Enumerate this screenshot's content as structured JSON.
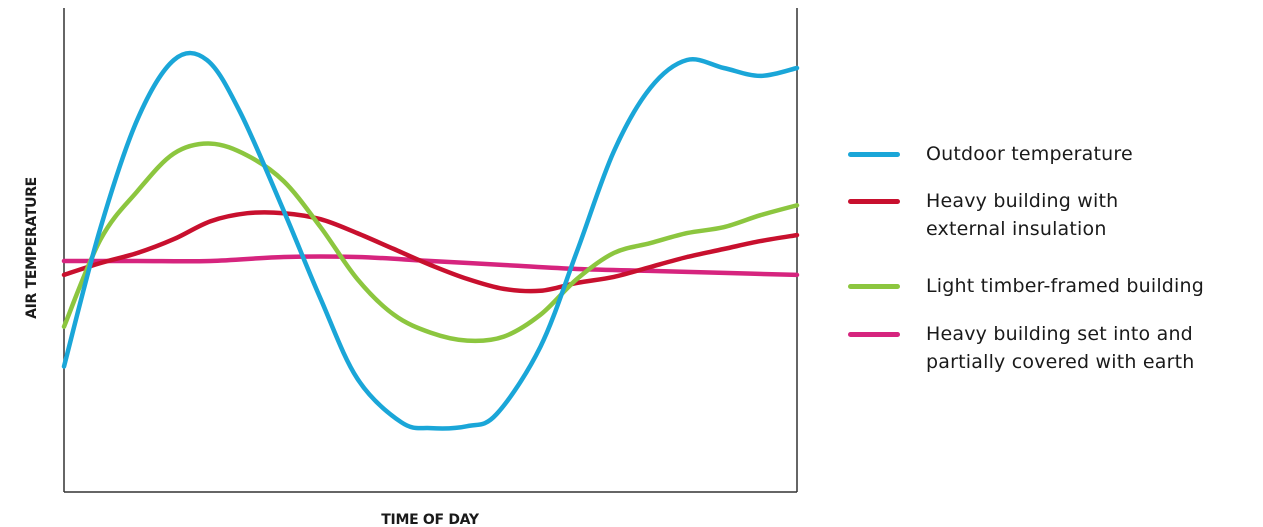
{
  "chart_data": {
    "type": "line",
    "title": "",
    "xlabel": "TIME OF DAY",
    "ylabel": "AIR TEMPERATURE",
    "xlim": [
      0,
      100
    ],
    "ylim": [
      0,
      100
    ],
    "grid": false,
    "legend_position": "right",
    "series": [
      {
        "name": "Outdoor temperature",
        "color": "#1aa6d8",
        "x": [
          0,
          5,
          10,
          15,
          19.5,
          24,
          30,
          35,
          40,
          46,
          50,
          55,
          59,
          65,
          70,
          75,
          80,
          85,
          90,
          95,
          100
        ],
        "y": [
          23,
          58,
          85,
          100,
          100,
          87,
          62,
          40,
          20,
          9,
          7.5,
          8,
          11,
          28,
          52,
          77,
          93,
          100,
          98,
          96,
          98
        ]
      },
      {
        "name": "Heavy building with\nexternal insulation",
        "color": "#c8102e",
        "x": [
          0,
          5,
          10,
          15,
          20,
          25,
          30,
          35,
          40,
          45,
          50,
          55,
          60,
          65,
          70,
          75,
          80,
          85,
          90,
          95,
          100
        ],
        "y": [
          46,
          49,
          51.5,
          55,
          59.5,
          61.5,
          61.5,
          60,
          56.5,
          52.5,
          48.5,
          45,
          42.5,
          42,
          44,
          45.5,
          48,
          50.5,
          52.5,
          54.5,
          56
        ]
      },
      {
        "name": "Light timber-framed building",
        "color": "#8cc63f",
        "x": [
          0,
          5,
          10,
          15,
          20,
          25,
          30,
          35,
          40,
          45,
          50,
          55,
          60,
          65,
          70,
          75,
          80,
          85,
          90,
          95,
          100
        ],
        "y": [
          33,
          55,
          67,
          76.5,
          79,
          76,
          69.5,
          58,
          45,
          36,
          31.5,
          29.5,
          30.5,
          36,
          45,
          51.5,
          54,
          56.5,
          58,
          61,
          63.5
        ]
      },
      {
        "name": "Heavy building set into and\npartially covered with earth",
        "color": "#d6247e",
        "x": [
          0,
          10,
          20,
          30,
          40,
          50,
          60,
          70,
          80,
          90,
          100
        ],
        "y": [
          49.5,
          49.5,
          49.5,
          50.5,
          50.5,
          49.5,
          48.5,
          47.5,
          47,
          46.5,
          46
        ]
      }
    ]
  }
}
